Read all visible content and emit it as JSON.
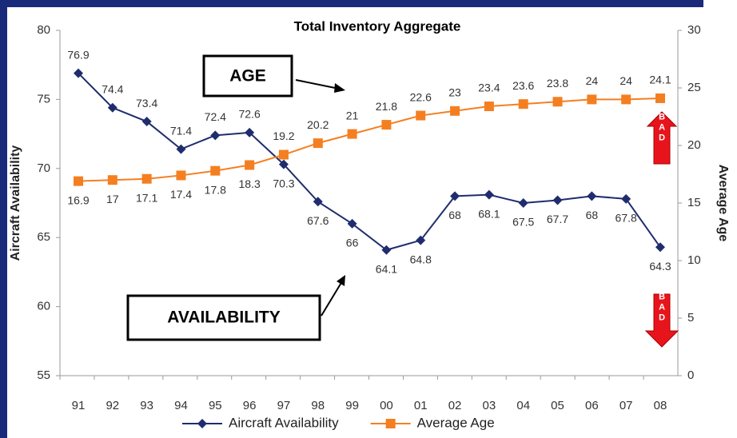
{
  "chart_data": {
    "type": "line",
    "title": "Total Inventory Aggregate",
    "categories": [
      "91",
      "92",
      "93",
      "94",
      "95",
      "96",
      "97",
      "98",
      "99",
      "00",
      "01",
      "02",
      "03",
      "04",
      "05",
      "06",
      "07",
      "08"
    ],
    "series": [
      {
        "name": "Aircraft Availability",
        "color": "#1f2d6e",
        "axis": "y",
        "marker": "diamond",
        "values": [
          76.9,
          74.4,
          73.4,
          71.4,
          72.4,
          72.6,
          70.3,
          67.6,
          66,
          64.1,
          64.8,
          68,
          68.1,
          67.5,
          67.7,
          68,
          67.8,
          64.3
        ]
      },
      {
        "name": "Average Age",
        "color": "#f47f20",
        "axis": "y2",
        "marker": "square",
        "values": [
          16.9,
          17,
          17.1,
          17.4,
          17.8,
          18.3,
          19.2,
          20.2,
          21,
          21.8,
          22.6,
          23,
          23.4,
          23.6,
          23.8,
          24,
          24,
          24.1
        ]
      }
    ],
    "y_label": "Aircraft Availability",
    "y2_label": "Average Age",
    "ylim": [
      55,
      80
    ],
    "yticks": [
      55,
      60,
      65,
      70,
      75,
      80
    ],
    "y2lim": [
      0,
      30
    ],
    "y2ticks": [
      0,
      5,
      10,
      15,
      20,
      25,
      30
    ],
    "legend": "bottom",
    "annotations": [
      "AGE",
      "AVAILABILITY",
      "BAD",
      "BAD"
    ]
  }
}
